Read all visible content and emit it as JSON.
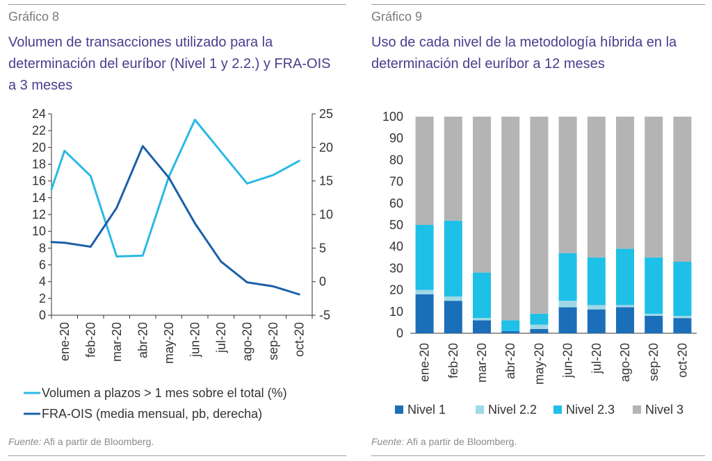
{
  "charts": [
    {
      "figure_label": "Gráfico 8",
      "title": "Volumen de transacciones utilizado para la determinación del euríbor (Nivel 1 y 2.2.) y FRA-OIS a 3 meses",
      "source_label": "Fuente:",
      "source_text": "Afi a partir de Bloomberg."
    },
    {
      "figure_label": "Gráfico 9",
      "title": "Uso de cada nivel de la metodología híbrida en la determinación del euríbor a 12 meses",
      "source_label": "Fuente:",
      "source_text": "Afi a partir de Bloomberg."
    }
  ],
  "chart_data": [
    {
      "type": "line",
      "categories": [
        "ene-20",
        "feb-20",
        "mar-20",
        "abr-20",
        "may-20",
        "jun-20",
        "jul-20",
        "ago-20",
        "sep-20",
        "oct-20"
      ],
      "x_tick_positions": [
        0.5,
        1.5,
        2.5,
        3.5,
        4.5,
        5.5,
        6.5,
        7.5,
        8.5,
        9.5
      ],
      "xlim": [
        0,
        10
      ],
      "y_left": {
        "ylim": [
          0,
          24
        ],
        "ticks": [
          0,
          2,
          4,
          6,
          8,
          10,
          12,
          14,
          16,
          18,
          20,
          22,
          24
        ]
      },
      "y_right": {
        "ylim": [
          -5,
          25
        ],
        "ticks": [
          -5,
          0,
          5,
          10,
          15,
          20,
          25
        ]
      },
      "series": [
        {
          "name": "Volumen a plazos > 1 mes sobre el total (%)",
          "axis": "left",
          "color": "#2ab8e4",
          "x": [
            0,
            0.5,
            1.5,
            2.5,
            3.5,
            4.5,
            5.5,
            6.5,
            7.5,
            8.5,
            9.5
          ],
          "values": [
            15.0,
            19.6,
            16.6,
            7.0,
            7.1,
            16.5,
            23.3,
            19.5,
            15.7,
            16.7,
            18.4
          ]
        },
        {
          "name": "FRA-OIS (media mensual, pb, derecha)",
          "axis": "right",
          "color": "#1b5fa8",
          "x": [
            0,
            0.5,
            1.5,
            2.5,
            3.5,
            4.5,
            5.5,
            6.5,
            7.5,
            8.5,
            9.5
          ],
          "values": [
            5.9,
            5.8,
            5.2,
            11.0,
            20.2,
            15.5,
            8.7,
            3.0,
            -0.1,
            -0.7,
            -1.9
          ]
        }
      ],
      "grid": false,
      "legend_position": "bottom"
    },
    {
      "type": "bar",
      "stacked": true,
      "categories": [
        "ene-20",
        "feb-20",
        "mar-20",
        "abr-20",
        "may-20",
        "jun-20",
        "jul-20",
        "ago-20",
        "sep-20",
        "oct-20"
      ],
      "ylim": [
        0,
        100
      ],
      "y_ticks": [
        0,
        10,
        20,
        30,
        40,
        50,
        60,
        70,
        80,
        90,
        100
      ],
      "series": [
        {
          "name": "Nivel 1",
          "color": "#1b6fb8",
          "values": [
            18,
            15,
            6,
            1,
            2,
            12,
            11,
            12,
            8,
            7
          ]
        },
        {
          "name": "Nivel 2.2",
          "color": "#9fd8e6",
          "values": [
            2,
            2,
            1,
            0,
            2,
            3,
            2,
            1,
            1,
            1
          ]
        },
        {
          "name": "Nivel 2.3",
          "color": "#1ec0e8",
          "values": [
            30,
            35,
            21,
            5,
            5,
            22,
            22,
            26,
            26,
            25
          ]
        },
        {
          "name": "Nivel 3",
          "color": "#b4b4b4",
          "values": [
            50,
            48,
            72,
            94,
            91,
            63,
            65,
            61,
            65,
            67
          ]
        }
      ],
      "grid": false,
      "legend_position": "bottom"
    }
  ]
}
